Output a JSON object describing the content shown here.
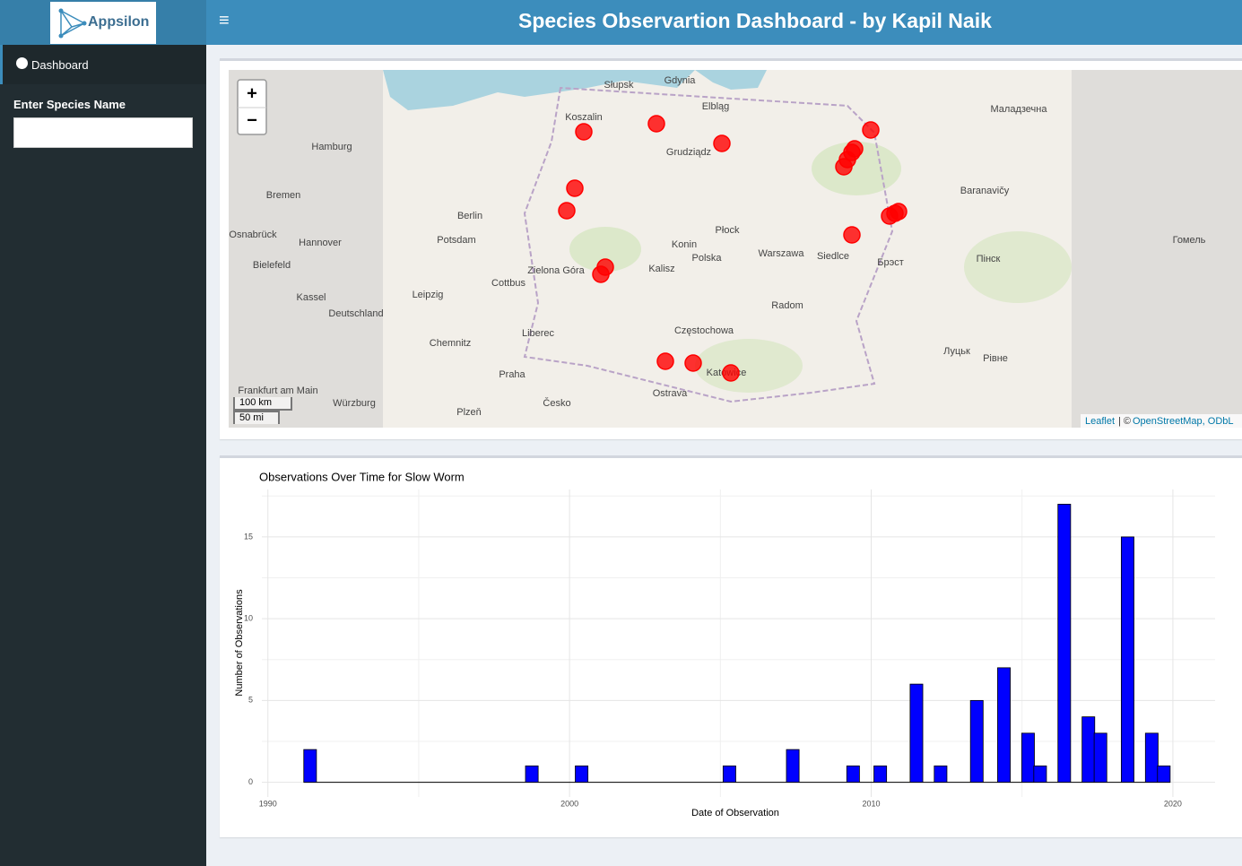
{
  "header": {
    "logo": "Appsilon",
    "menu_icon": "≡",
    "title": "Species Observartion Dashboard - by Kapil Naik"
  },
  "sidebar": {
    "menu_item": "Dashboard",
    "input_label": "Enter Species Name"
  },
  "map": {
    "zoom_in": "+",
    "zoom_out": "−",
    "scale": [
      "100 km",
      "50 mi"
    ],
    "attribution": {
      "leaflet": "Leaflet",
      "separator": "| ©",
      "osm": "OpenStreetMap, ODbL"
    },
    "places": [
      "Słupsk",
      "Gdynia",
      "Koszalin",
      "Elbląg",
      "Grudziądz",
      "Hamburg",
      "Bremen",
      "Berlin",
      "Potsdam",
      "Hannover",
      "Osnabrück",
      "Bielefeld",
      "Kassel",
      "Leipzig",
      "Deutschland",
      "Chemnitz",
      "Praha",
      "Česko",
      "Plzeň",
      "Liberec",
      "Cottbus",
      "Zielona Góra",
      "Konin",
      "Kalisz",
      "Polska",
      "Płock",
      "Warszawa",
      "Siedlce",
      "Брэст",
      "Radom",
      "Częstochowa",
      "Ostrava",
      "Katowice",
      "Baranavičy",
      "Маладзечна",
      "Пінск",
      "Луцьк",
      "Рівне",
      "Гомель",
      "Frankfurt am Main",
      "Würzburg"
    ]
  },
  "chart_data": {
    "type": "bar",
    "title": "Observations Over Time for Slow Worm",
    "x_label": "Date of Observation",
    "y_label": "Number of Observations",
    "color": "#0000ff",
    "x": [
      1991.4,
      1998.75,
      2000.4,
      2005.3,
      2007.4,
      2009.4,
      2010.3,
      2011.5,
      2012.3,
      2013.5,
      2014.4,
      2015.2,
      2015.6,
      2016.4,
      2017.2,
      2017.6,
      2018.5,
      2019.3,
      2019.7
    ],
    "values": [
      2,
      1,
      1,
      1,
      2,
      1,
      1,
      6,
      1,
      5,
      7,
      3,
      1,
      17,
      4,
      3,
      15,
      3,
      1
    ],
    "xlim": [
      1989.8,
      2021.4
    ],
    "ylim": [
      -0.9,
      17.9
    ],
    "xticks": [
      1990,
      2000,
      2010,
      2020
    ],
    "yticks": [
      0,
      5,
      10,
      15
    ],
    "grid": true
  }
}
